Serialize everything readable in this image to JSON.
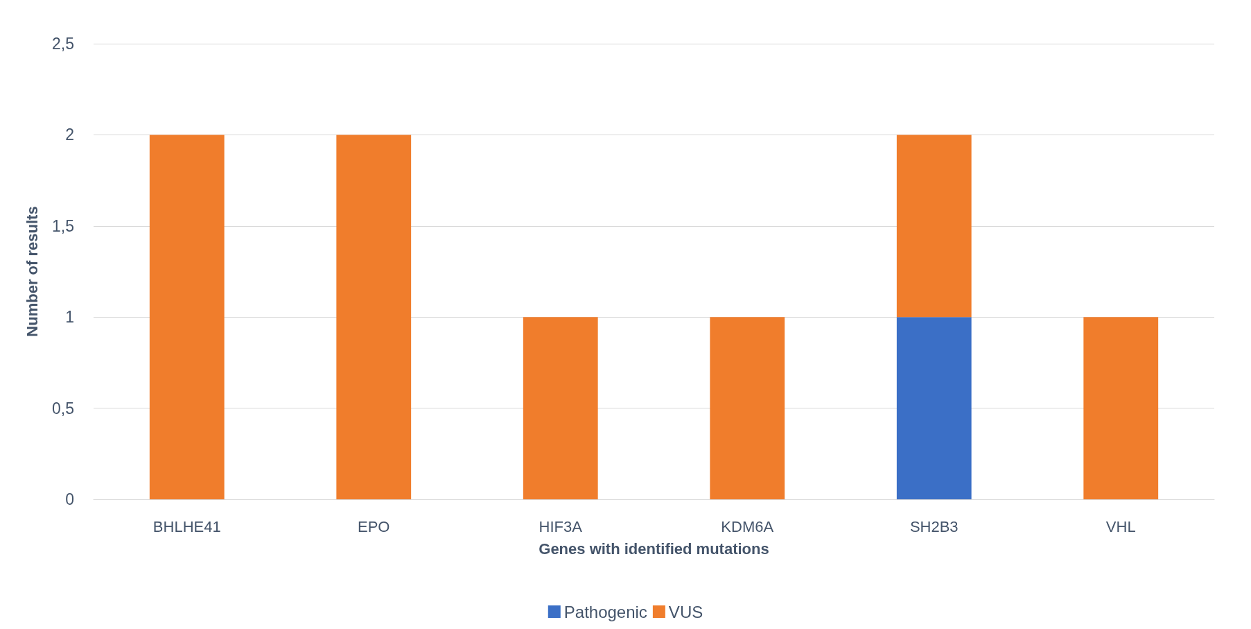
{
  "chart_data": {
    "type": "bar",
    "stacked": true,
    "xlabel": "Genes with identified mutations",
    "ylabel": "Number of results",
    "categories": [
      "BHLHE41",
      "EPO",
      "HIF3A",
      "KDM6A",
      "SH2B3",
      "VHL"
    ],
    "series": [
      {
        "name": "Pathogenic",
        "color": "#3b6fc6",
        "values": [
          0,
          0,
          0,
          0,
          1,
          0
        ]
      },
      {
        "name": "VUS",
        "color": "#f07d2c",
        "values": [
          2,
          2,
          1,
          1,
          1,
          1
        ]
      }
    ],
    "ylim": [
      0,
      2.5
    ],
    "yticks": [
      0,
      {
        "value": 0.5,
        "label": "0,5"
      },
      1,
      {
        "value": 1.5,
        "label": "1,5"
      },
      2,
      {
        "value": 2.5,
        "label": "2,5"
      }
    ],
    "grid": "y",
    "legend": "bottom"
  }
}
